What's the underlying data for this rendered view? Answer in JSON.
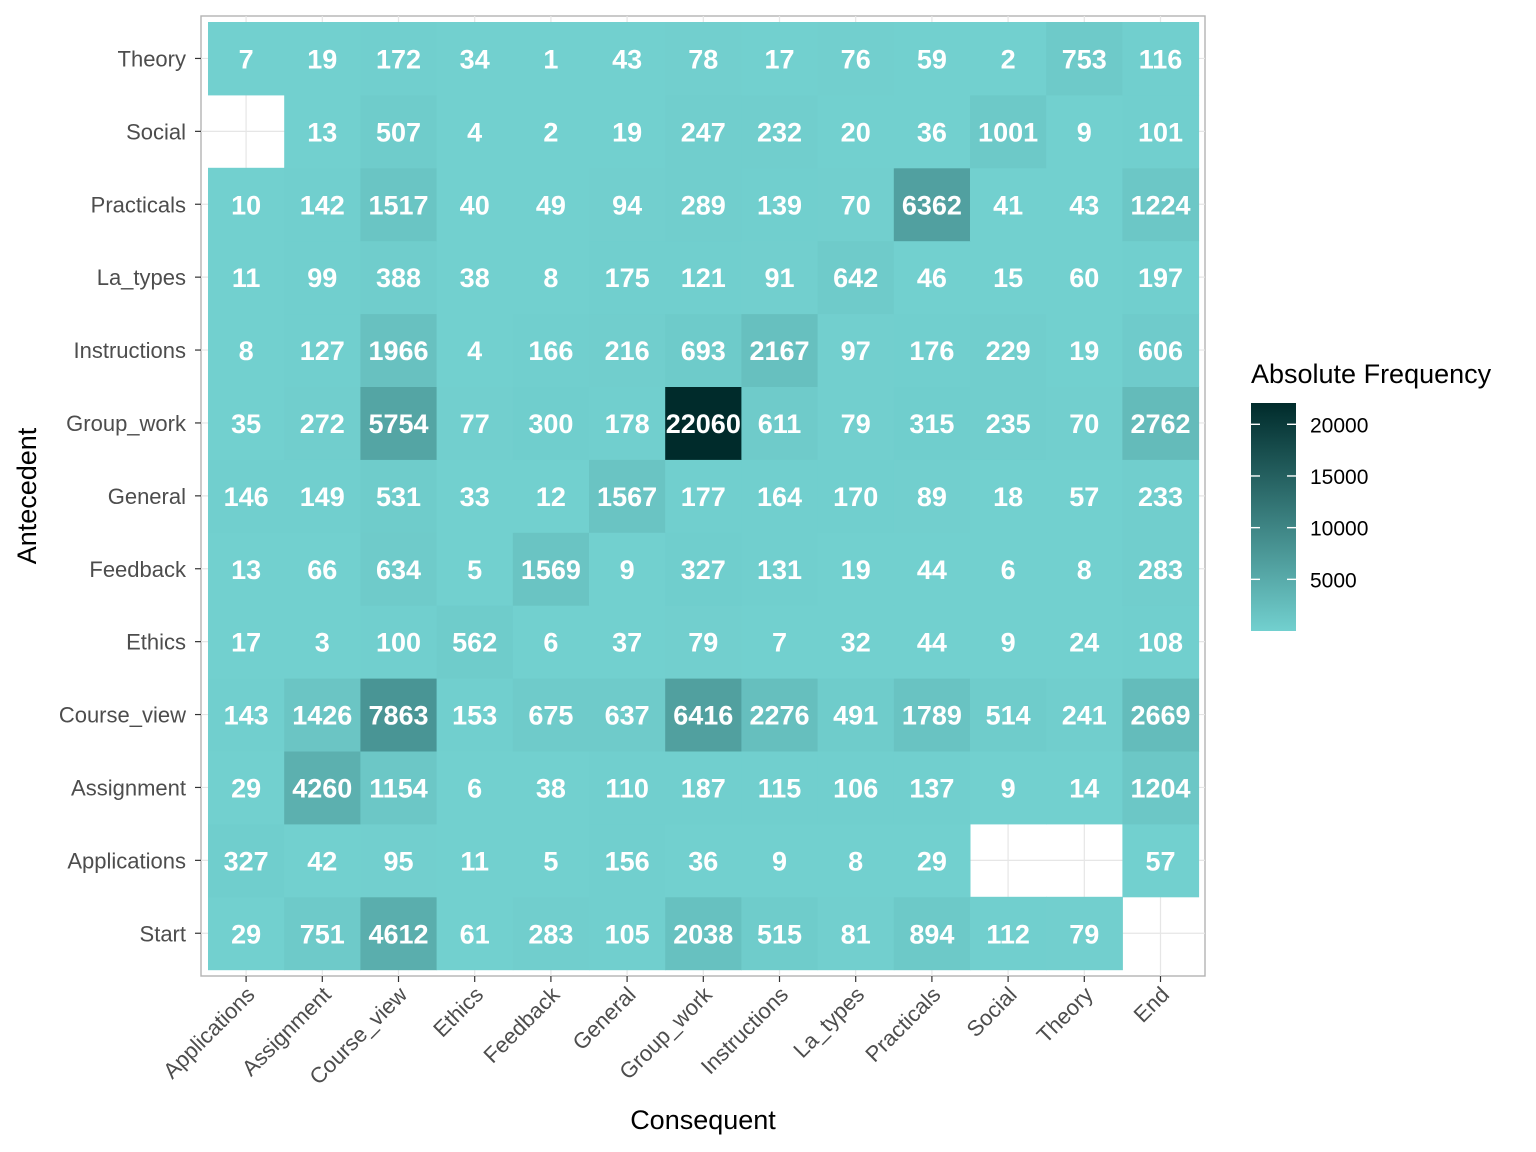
{
  "chart_data": {
    "type": "heatmap",
    "xlabel": "Consequent",
    "ylabel": "Antecedent",
    "x_categories": [
      "Applications",
      "Assignment",
      "Course_view",
      "Ethics",
      "Feedback",
      "General",
      "Group_work",
      "Instructions",
      "La_types",
      "Practicals",
      "Social",
      "Theory",
      "End"
    ],
    "y_categories": [
      "Start",
      "Applications",
      "Assignment",
      "Course_view",
      "Ethics",
      "Feedback",
      "General",
      "Group_work",
      "Instructions",
      "La_types",
      "Practicals",
      "Social",
      "Theory"
    ],
    "values": [
      [
        29,
        751,
        4612,
        61,
        283,
        105,
        2038,
        515,
        81,
        894,
        112,
        79,
        null
      ],
      [
        327,
        42,
        95,
        11,
        5,
        156,
        36,
        9,
        8,
        29,
        null,
        null,
        57
      ],
      [
        29,
        4260,
        1154,
        6,
        38,
        110,
        187,
        115,
        106,
        137,
        9,
        14,
        1204
      ],
      [
        143,
        1426,
        7863,
        153,
        675,
        637,
        6416,
        2276,
        491,
        1789,
        514,
        241,
        2669
      ],
      [
        17,
        3,
        100,
        562,
        6,
        37,
        79,
        7,
        32,
        44,
        9,
        24,
        108
      ],
      [
        13,
        66,
        634,
        5,
        1569,
        9,
        327,
        131,
        19,
        44,
        6,
        8,
        283
      ],
      [
        146,
        149,
        531,
        33,
        12,
        1567,
        177,
        164,
        170,
        89,
        18,
        57,
        233
      ],
      [
        35,
        272,
        5754,
        77,
        300,
        178,
        22060,
        611,
        79,
        315,
        235,
        70,
        2762
      ],
      [
        8,
        127,
        1966,
        4,
        166,
        216,
        693,
        2167,
        97,
        176,
        229,
        19,
        606
      ],
      [
        11,
        99,
        388,
        38,
        8,
        175,
        121,
        91,
        642,
        46,
        15,
        60,
        197
      ],
      [
        10,
        142,
        1517,
        40,
        49,
        94,
        289,
        139,
        70,
        6362,
        41,
        43,
        1224
      ],
      [
        null,
        13,
        507,
        4,
        2,
        19,
        247,
        232,
        20,
        36,
        1001,
        9,
        101
      ],
      [
        7,
        19,
        172,
        34,
        1,
        43,
        78,
        17,
        76,
        59,
        2,
        753,
        116
      ]
    ],
    "legend": {
      "title": "Absolute Frequency",
      "ticks": [
        5000,
        10000,
        15000,
        20000
      ],
      "range": [
        1,
        22060
      ],
      "low_color": "#72d0cf",
      "high_color": "#002b2b"
    },
    "grid": true,
    "legend_position": "right"
  }
}
